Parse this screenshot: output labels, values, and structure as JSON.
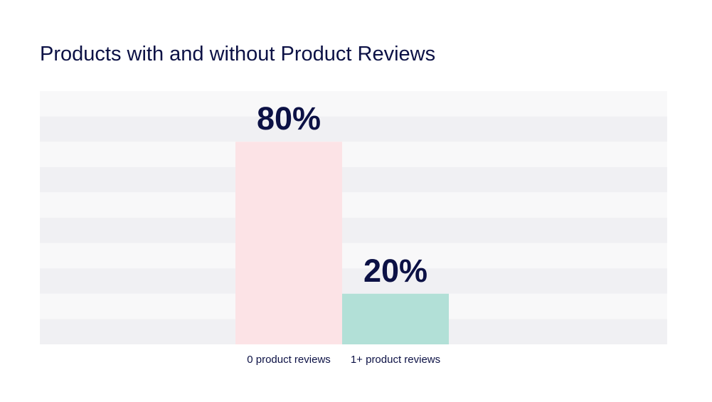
{
  "chart_data": {
    "type": "bar",
    "title": "Products with and without Product Reviews",
    "categories": [
      "0 product reviews",
      "1+ product reviews"
    ],
    "values": [
      80,
      20
    ],
    "value_labels": [
      "80%",
      "20%"
    ],
    "xlabel": "",
    "ylabel": "",
    "ylim": [
      0,
      100
    ],
    "grid": "horizontal bands",
    "legend": "none"
  },
  "colors": {
    "title": "#0c1145",
    "value_label": "#0c1145",
    "category_label": "#0c1145",
    "band_light": "#f8f8f9",
    "band_dark": "#f0f0f3",
    "bar_colors": [
      "#fce3e6",
      "#b2e0d7"
    ]
  }
}
